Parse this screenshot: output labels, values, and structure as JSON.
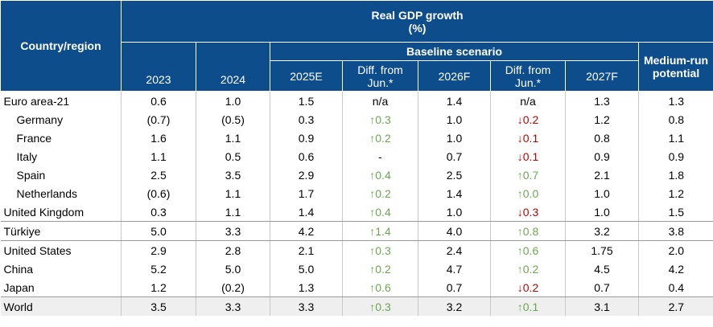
{
  "header": {
    "left": "Country/region",
    "title": "Real GDP growth",
    "unit": "(%)",
    "baseline": "Baseline scenario",
    "medium": "Medium-run potential",
    "columns": [
      "2023",
      "2024",
      "2025E",
      "Diff. from Jun.*",
      "2026F",
      "Diff. from Jun.*",
      "2027F"
    ]
  },
  "table": {
    "rows": [
      {
        "label": "Euro area-21",
        "cells": [
          "0.6",
          "1.0",
          "1.5",
          "n/a",
          "1.4",
          "n/a",
          "1.3",
          "1.3"
        ]
      },
      {
        "label": "Germany",
        "cells": [
          "(0.7)",
          "(0.5)",
          "0.3",
          {
            "text": "↑0.3",
            "color": "#6aa84f"
          },
          "1.0",
          {
            "text": "↓0.2",
            "color": "#c00000"
          },
          "1.2",
          "0.8"
        ]
      },
      {
        "label": "France",
        "cells": [
          "1.6",
          "1.1",
          "0.9",
          {
            "text": "↑0.2",
            "color": "#6aa84f"
          },
          "1.0",
          {
            "text": "↓0.1",
            "color": "#c00000"
          },
          "0.8",
          "1.1"
        ]
      },
      {
        "label": "Italy",
        "cells": [
          "1.1",
          "0.5",
          "0.6",
          "-",
          "0.7",
          {
            "text": "↓0.1",
            "color": "#c00000"
          },
          "0.9",
          "0.9"
        ]
      },
      {
        "label": "Spain",
        "cells": [
          "2.5",
          "3.5",
          "2.9",
          {
            "text": "↑0.4",
            "color": "#6aa84f"
          },
          "2.5",
          {
            "text": "↑0.7",
            "color": "#6aa84f"
          },
          "2.1",
          "1.8"
        ]
      },
      {
        "label": "Netherlands",
        "cells": [
          "(0.6)",
          "1.1",
          "1.7",
          {
            "text": "↑0.2",
            "color": "#6aa84f"
          },
          "1.4",
          {
            "text": "↑0.0",
            "color": "#6aa84f"
          },
          "1.0",
          "1.2"
        ]
      },
      {
        "label": "United Kingdom",
        "cells": [
          "0.3",
          "1.1",
          "1.4",
          {
            "text": "↑0.4",
            "color": "#6aa84f"
          },
          "1.0",
          {
            "text": "↓0.3",
            "color": "#c00000"
          },
          "1.0",
          "1.5"
        ]
      },
      {
        "label": "Türkiye",
        "cells": [
          "5.0",
          "3.3",
          "4.2",
          {
            "text": "↑1.4",
            "color": "#6aa84f"
          },
          "4.0",
          {
            "text": "↑0.8",
            "color": "#6aa84f"
          },
          "3.2",
          "3.8"
        ]
      },
      {
        "label": "United States",
        "cells": [
          "2.9",
          "2.8",
          "2.1",
          {
            "text": "↑0.3",
            "color": "#6aa84f"
          },
          "2.4",
          {
            "text": "↑0.6",
            "color": "#6aa84f"
          },
          "1.75",
          "2.0"
        ]
      },
      {
        "label": "China",
        "cells": [
          "5.2",
          "5.0",
          "5.0",
          {
            "text": "↑0.2",
            "color": "#6aa84f"
          },
          "4.7",
          {
            "text": "↑0.2",
            "color": "#6aa84f"
          },
          "4.5",
          "4.2"
        ]
      },
      {
        "label": "Japan",
        "cells": [
          "1.2",
          "(0.2)",
          "1.3",
          {
            "text": "↑0.6",
            "color": "#6aa84f"
          },
          "0.7",
          {
            "text": "↓0.2",
            "color": "#c00000"
          },
          "0.7",
          "0.4"
        ]
      },
      {
        "label": "World",
        "cells": [
          "3.5",
          "3.3",
          "3.3",
          {
            "text": "↑0.3",
            "color": "#6aa84f"
          },
          "3.2",
          {
            "text": "↑0.1",
            "color": "#6aa84f"
          },
          "3.1",
          "2.7"
        ]
      }
    ]
  }
}
